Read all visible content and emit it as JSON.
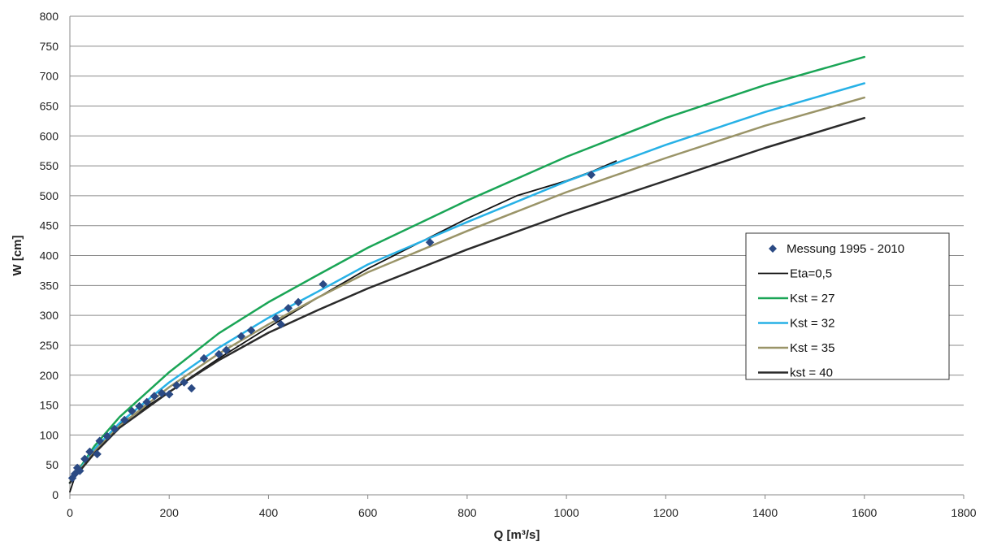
{
  "chart_data": {
    "type": "line",
    "title": "",
    "xlabel": "Q [m³/s]",
    "ylabel": "W [cm]",
    "xlim": [
      0,
      1800
    ],
    "ylim": [
      0,
      800
    ],
    "x_ticks": [
      0,
      200,
      400,
      600,
      800,
      1000,
      1200,
      1400,
      1600,
      1800
    ],
    "y_ticks": [
      0,
      50,
      100,
      150,
      200,
      250,
      300,
      350,
      400,
      450,
      500,
      550,
      600,
      650,
      700,
      750,
      800
    ],
    "grid": "horizontal",
    "legend_position": "right",
    "series": [
      {
        "name": "Messung 1995 - 2010",
        "kind": "scatter",
        "marker": "diamond",
        "color": "#2b4a84",
        "points": [
          [
            5,
            28
          ],
          [
            10,
            35
          ],
          [
            15,
            45
          ],
          [
            20,
            40
          ],
          [
            30,
            60
          ],
          [
            40,
            72
          ],
          [
            55,
            68
          ],
          [
            60,
            90
          ],
          [
            75,
            98
          ],
          [
            90,
            110
          ],
          [
            110,
            125
          ],
          [
            125,
            140
          ],
          [
            140,
            148
          ],
          [
            155,
            155
          ],
          [
            170,
            165
          ],
          [
            185,
            170
          ],
          [
            200,
            168
          ],
          [
            215,
            183
          ],
          [
            230,
            188
          ],
          [
            245,
            178
          ],
          [
            270,
            228
          ],
          [
            300,
            235
          ],
          [
            315,
            242
          ],
          [
            345,
            265
          ],
          [
            365,
            275
          ],
          [
            415,
            295
          ],
          [
            425,
            285
          ],
          [
            440,
            312
          ],
          [
            460,
            322
          ],
          [
            510,
            352
          ],
          [
            725,
            422
          ],
          [
            1050,
            535
          ]
        ]
      },
      {
        "name": "Eta=0,5",
        "kind": "line",
        "color": "#111111",
        "width": 1.8,
        "points": [
          [
            0,
            5
          ],
          [
            10,
            30
          ],
          [
            50,
            70
          ],
          [
            100,
            118
          ],
          [
            200,
            172
          ],
          [
            300,
            228
          ],
          [
            400,
            280
          ],
          [
            500,
            330
          ],
          [
            600,
            378
          ],
          [
            700,
            420
          ],
          [
            800,
            462
          ],
          [
            900,
            500
          ],
          [
            1000,
            525
          ],
          [
            1050,
            540
          ],
          [
            1100,
            558
          ]
        ]
      },
      {
        "name": "Kst = 27",
        "kind": "line",
        "color": "#1aa556",
        "width": 2.5,
        "points": [
          [
            0,
            20
          ],
          [
            50,
            82
          ],
          [
            100,
            130
          ],
          [
            200,
            205
          ],
          [
            300,
            270
          ],
          [
            400,
            322
          ],
          [
            500,
            368
          ],
          [
            600,
            413
          ],
          [
            800,
            492
          ],
          [
            1000,
            565
          ],
          [
            1200,
            630
          ],
          [
            1400,
            685
          ],
          [
            1600,
            732
          ]
        ]
      },
      {
        "name": "Kst = 32",
        "kind": "line",
        "color": "#27b1e6",
        "width": 2.5,
        "points": [
          [
            0,
            20
          ],
          [
            50,
            77
          ],
          [
            100,
            120
          ],
          [
            200,
            188
          ],
          [
            300,
            246
          ],
          [
            400,
            296
          ],
          [
            500,
            340
          ],
          [
            600,
            385
          ],
          [
            800,
            456
          ],
          [
            1000,
            524
          ],
          [
            1200,
            585
          ],
          [
            1400,
            640
          ],
          [
            1600,
            688
          ]
        ]
      },
      {
        "name": "Kst = 35",
        "kind": "line",
        "color": "#9a9468",
        "width": 2.5,
        "points": [
          [
            0,
            20
          ],
          [
            50,
            73
          ],
          [
            100,
            115
          ],
          [
            200,
            180
          ],
          [
            300,
            236
          ],
          [
            400,
            285
          ],
          [
            500,
            330
          ],
          [
            600,
            372
          ],
          [
            800,
            441
          ],
          [
            1000,
            506
          ],
          [
            1200,
            563
          ],
          [
            1400,
            617
          ],
          [
            1600,
            664
          ]
        ]
      },
      {
        "name": "kst = 40",
        "kind": "line",
        "color": "#2a2a2a",
        "width": 2.5,
        "points": [
          [
            0,
            20
          ],
          [
            50,
            70
          ],
          [
            100,
            112
          ],
          [
            200,
            172
          ],
          [
            300,
            225
          ],
          [
            400,
            271
          ],
          [
            500,
            309
          ],
          [
            600,
            345
          ],
          [
            800,
            410
          ],
          [
            1000,
            470
          ],
          [
            1200,
            525
          ],
          [
            1400,
            580
          ],
          [
            1600,
            630
          ]
        ]
      }
    ]
  }
}
